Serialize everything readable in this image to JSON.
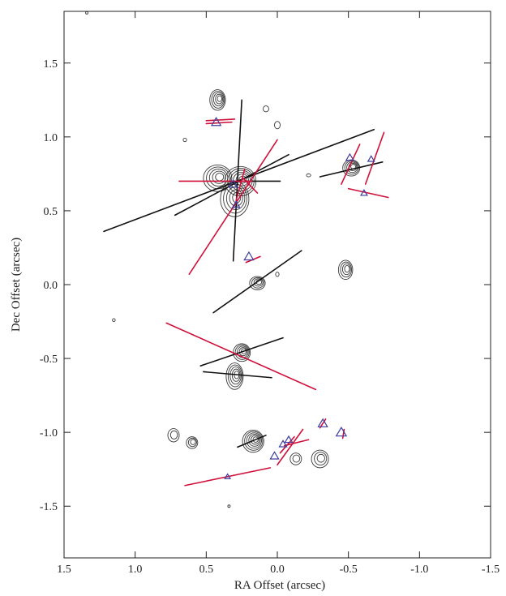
{
  "colors": {
    "axis": "#222222",
    "contour": "#3a3a3a",
    "black_line": "#111111",
    "red_line": "#d0103a",
    "triangle": "#3d3d9e"
  },
  "chart_data": {
    "type": "scatter",
    "title": "",
    "xlabel": "RA Offset (arcsec)",
    "ylabel": "Dec Offset (arcsec)",
    "xlim": [
      1.5,
      -1.5
    ],
    "ylim": [
      -1.85,
      1.85
    ],
    "x_ticks": [
      1.5,
      1.0,
      0.5,
      0.0,
      -0.5,
      -1.0,
      -1.5
    ],
    "x_tick_labels": [
      "1.5",
      "1.0",
      "0.5",
      "0.0",
      "-0.5",
      "-1.0",
      "-1.5"
    ],
    "y_ticks": [
      1.5,
      1.0,
      0.5,
      0.0,
      -0.5,
      -1.0,
      -1.5
    ],
    "y_tick_labels": [
      "1.5",
      "1.0",
      "0.5",
      "0.0",
      "-0.5",
      "-1.0",
      "-1.5"
    ],
    "grid": false,
    "contour_sources": [
      {
        "ra": 0.42,
        "dec": 1.25,
        "rx": 0.055,
        "ry": 0.07,
        "levels": 5
      },
      {
        "ra": 0.42,
        "dec": 0.72,
        "rx": 0.1,
        "ry": 0.09,
        "levels": 5
      },
      {
        "ra": 0.26,
        "dec": 0.7,
        "rx": 0.11,
        "ry": 0.1,
        "levels": 6
      },
      {
        "ra": 0.3,
        "dec": 0.58,
        "rx": 0.1,
        "ry": 0.12,
        "levels": 5
      },
      {
        "ra": 0.08,
        "dec": 1.19,
        "rx": 0.02,
        "ry": 0.02,
        "levels": 1
      },
      {
        "ra": 0.0,
        "dec": 1.08,
        "rx": 0.02,
        "ry": 0.025,
        "levels": 1
      },
      {
        "ra": 0.65,
        "dec": 0.98,
        "rx": 0.012,
        "ry": 0.012,
        "levels": 1
      },
      {
        "ra": -0.52,
        "dec": 0.79,
        "rx": 0.06,
        "ry": 0.055,
        "levels": 5
      },
      {
        "ra": -0.22,
        "dec": 0.74,
        "rx": 0.015,
        "ry": 0.01,
        "levels": 1
      },
      {
        "ra": 0.14,
        "dec": 0.01,
        "rx": 0.055,
        "ry": 0.045,
        "levels": 4
      },
      {
        "ra": -0.48,
        "dec": 0.1,
        "rx": 0.05,
        "ry": 0.065,
        "levels": 4
      },
      {
        "ra": 0.0,
        "dec": 0.07,
        "rx": 0.012,
        "ry": 0.015,
        "levels": 1
      },
      {
        "ra": 1.15,
        "dec": -0.24,
        "rx": 0.01,
        "ry": 0.01,
        "levels": 1
      },
      {
        "ra": 0.25,
        "dec": -0.46,
        "rx": 0.06,
        "ry": 0.06,
        "levels": 5
      },
      {
        "ra": 0.3,
        "dec": -0.62,
        "rx": 0.06,
        "ry": 0.09,
        "levels": 5
      },
      {
        "ra": 0.73,
        "dec": -1.02,
        "rx": 0.04,
        "ry": 0.045,
        "levels": 2
      },
      {
        "ra": 0.6,
        "dec": -1.07,
        "rx": 0.04,
        "ry": 0.04,
        "levels": 3
      },
      {
        "ra": 0.17,
        "dec": -1.06,
        "rx": 0.075,
        "ry": 0.075,
        "levels": 6
      },
      {
        "ra": -0.13,
        "dec": -1.18,
        "rx": 0.04,
        "ry": 0.04,
        "levels": 2
      },
      {
        "ra": -0.3,
        "dec": -1.18,
        "rx": 0.06,
        "ry": 0.06,
        "levels": 3
      },
      {
        "ra": 0.34,
        "dec": -1.5,
        "rx": 0.005,
        "ry": 0.005,
        "levels": 1
      },
      {
        "ra": 1.34,
        "dec": 1.84,
        "rx": 0.004,
        "ry": 0.004,
        "levels": 1
      }
    ],
    "black_lines": [
      {
        "x1": 1.22,
        "y1": 0.36,
        "x2": -0.68,
        "y2": 1.05
      },
      {
        "x1": 0.25,
        "y1": 1.25,
        "x2": 0.31,
        "y2": 0.16
      },
      {
        "x1": 0.3,
        "y1": 0.7,
        "x2": -0.02,
        "y2": 0.7
      },
      {
        "x1": 0.72,
        "y1": 0.47,
        "x2": -0.08,
        "y2": 0.88
      },
      {
        "x1": -0.3,
        "y1": 0.73,
        "x2": -0.74,
        "y2": 0.83
      },
      {
        "x1": 0.45,
        "y1": -0.19,
        "x2": -0.17,
        "y2": 0.23
      },
      {
        "x1": 0.54,
        "y1": -0.55,
        "x2": -0.04,
        "y2": -0.36
      },
      {
        "x1": 0.52,
        "y1": -0.59,
        "x2": 0.04,
        "y2": -0.63
      },
      {
        "x1": 0.28,
        "y1": -1.1,
        "x2": 0.08,
        "y2": -1.02
      }
    ],
    "red_lines": [
      {
        "x1": 0.69,
        "y1": 0.7,
        "x2": 0.18,
        "y2": 0.7
      },
      {
        "x1": 0.62,
        "y1": 0.07,
        "x2": 0.0,
        "y2": 0.98
      },
      {
        "x1": 0.29,
        "y1": 0.57,
        "x2": 0.23,
        "y2": 0.78
      },
      {
        "x1": 0.24,
        "y1": 0.72,
        "x2": 0.14,
        "y2": 0.62
      },
      {
        "x1": 0.5,
        "y1": 1.11,
        "x2": 0.3,
        "y2": 1.12
      },
      {
        "x1": 0.5,
        "y1": 1.09,
        "x2": 0.32,
        "y2": 1.1
      },
      {
        "x1": 0.22,
        "y1": 0.15,
        "x2": 0.12,
        "y2": 0.19
      },
      {
        "x1": -0.45,
        "y1": 0.68,
        "x2": -0.58,
        "y2": 0.95
      },
      {
        "x1": -0.62,
        "y1": 0.68,
        "x2": -0.75,
        "y2": 1.03
      },
      {
        "x1": -0.5,
        "y1": 0.65,
        "x2": -0.78,
        "y2": 0.59
      },
      {
        "x1": 0.78,
        "y1": -0.26,
        "x2": -0.27,
        "y2": -0.71
      },
      {
        "x1": 0.65,
        "y1": -1.36,
        "x2": 0.05,
        "y2": -1.24
      },
      {
        "x1": 0.0,
        "y1": -1.22,
        "x2": -0.18,
        "y2": -0.98
      },
      {
        "x1": -0.02,
        "y1": -1.14,
        "x2": -0.12,
        "y2": -1.03
      },
      {
        "x1": -0.05,
        "y1": -1.09,
        "x2": -0.22,
        "y2": -1.05
      },
      {
        "x1": -0.3,
        "y1": -0.97,
        "x2": -0.34,
        "y2": -0.91
      },
      {
        "x1": -0.46,
        "y1": -1.04,
        "x2": -0.47,
        "y2": -0.98
      }
    ],
    "triangles": [
      {
        "ra": 0.43,
        "dec": 1.1,
        "size": 0.05
      },
      {
        "ra": 0.31,
        "dec": 0.68,
        "size": 0.045
      },
      {
        "ra": 0.29,
        "dec": 0.54,
        "size": 0.04
      },
      {
        "ra": 0.2,
        "dec": 0.19,
        "size": 0.05
      },
      {
        "ra": -0.51,
        "dec": 0.86,
        "size": 0.04
      },
      {
        "ra": -0.66,
        "dec": 0.85,
        "size": 0.035
      },
      {
        "ra": -0.61,
        "dec": 0.62,
        "size": 0.035
      },
      {
        "ra": 0.35,
        "dec": -1.3,
        "size": 0.03
      },
      {
        "ra": 0.02,
        "dec": -1.16,
        "size": 0.045
      },
      {
        "ra": -0.04,
        "dec": -1.08,
        "size": 0.04
      },
      {
        "ra": -0.08,
        "dec": -1.05,
        "size": 0.04
      },
      {
        "ra": -0.32,
        "dec": -0.94,
        "size": 0.05
      },
      {
        "ra": -0.45,
        "dec": -1.0,
        "size": 0.055
      }
    ]
  }
}
